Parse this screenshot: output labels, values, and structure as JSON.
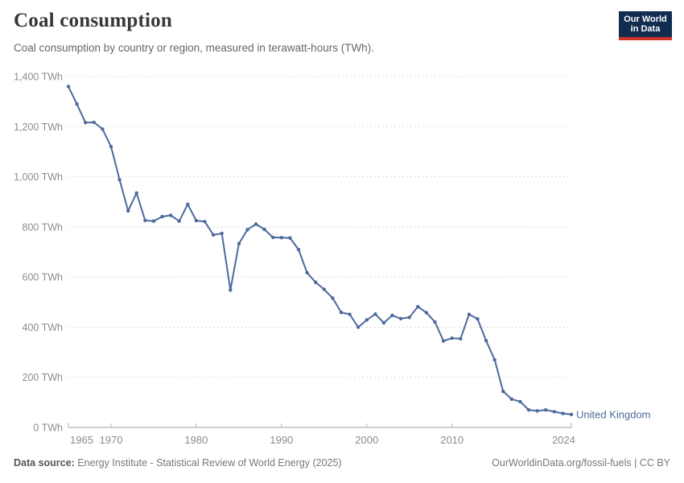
{
  "header": {
    "title": "Coal consumption",
    "subtitle": "Coal consumption by country or region, measured in terawatt-hours (TWh)."
  },
  "logo": {
    "line1": "Our World",
    "line2": "in Data"
  },
  "chart_data": {
    "type": "line",
    "title": "Coal consumption",
    "unit": "TWh",
    "grid": "dashed-horizontal",
    "legend_position": "end-of-line-label",
    "xlim": [
      1965,
      2024
    ],
    "ylim": [
      0,
      1400
    ],
    "x": [
      1965,
      1966,
      1967,
      1968,
      1969,
      1970,
      1971,
      1972,
      1973,
      1974,
      1975,
      1976,
      1977,
      1978,
      1979,
      1980,
      1981,
      1982,
      1983,
      1984,
      1985,
      1986,
      1987,
      1988,
      1989,
      1990,
      1991,
      1992,
      1993,
      1994,
      1995,
      1996,
      1997,
      1998,
      1999,
      2000,
      2001,
      2002,
      2003,
      2004,
      2005,
      2006,
      2007,
      2008,
      2009,
      2010,
      2011,
      2012,
      2013,
      2014,
      2015,
      2016,
      2017,
      2018,
      2019,
      2020,
      2021,
      2022,
      2023,
      2024
    ],
    "series": [
      {
        "name": "United Kingdom",
        "color": "#4C6A9C",
        "values": [
          1360,
          1290,
          1216,
          1217,
          1190,
          1120,
          988,
          864,
          935,
          826,
          823,
          841,
          846,
          823,
          890,
          825,
          821,
          768,
          774,
          548,
          733,
          789,
          811,
          790,
          758,
          757,
          756,
          710,
          617,
          579,
          551,
          516,
          459,
          451,
          400,
          429,
          452,
          417,
          447,
          434,
          439,
          482,
          458,
          421,
          345,
          356,
          354,
          451,
          433,
          346,
          270,
          144,
          113,
          103,
          70,
          66,
          70,
          63,
          56,
          52
        ]
      }
    ],
    "y_ticks": [
      {
        "value": 0,
        "label": "0 TWh"
      },
      {
        "value": 200,
        "label": "200 TWh"
      },
      {
        "value": 400,
        "label": "400 TWh"
      },
      {
        "value": 600,
        "label": "600 TWh"
      },
      {
        "value": 800,
        "label": "800 TWh"
      },
      {
        "value": 1000,
        "label": "1,000 TWh"
      },
      {
        "value": 1200,
        "label": "1,200 TWh"
      },
      {
        "value": 1400,
        "label": "1,400 TWh"
      }
    ],
    "x_ticks": [
      {
        "year": 1965,
        "label": "1965",
        "align": "start"
      },
      {
        "year": 1970,
        "label": "1970"
      },
      {
        "year": 1980,
        "label": "1980"
      },
      {
        "year": 1990,
        "label": "1990"
      },
      {
        "year": 2000,
        "label": "2000"
      },
      {
        "year": 2010,
        "label": "2010"
      },
      {
        "year": 2024,
        "label": "2024",
        "align": "end"
      }
    ],
    "entity_label": "United Kingdom"
  },
  "footer": {
    "source_label": "Data source:",
    "source_text": " Energy Institute - Statistical Review of World Energy (2025)",
    "credit": "OurWorldinData.org/fossil-fuels | CC BY"
  },
  "colors": {
    "line": "#4C6A9C",
    "entity_label": "#4C6A9C",
    "gridline": "#dadada",
    "axis": "#a2a2a2",
    "tick": "#b3b3b3",
    "tick_label": "#8c8c8c",
    "logo_bg": "#102d50",
    "logo_accent": "#cc3426"
  }
}
